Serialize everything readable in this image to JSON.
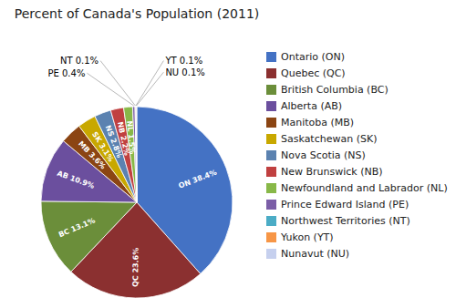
{
  "chart_data": {
    "type": "pie",
    "title": "Percent of Canada's Population (2011)",
    "categories": [
      "Ontario (ON)",
      "Quebec (QC)",
      "British Columbia (BC)",
      "Alberta (AB)",
      "Manitoba (MB)",
      "Saskatchewan (SK)",
      "Nova Scotia (NS)",
      "New Brunswick (NB)",
      "Newfoundland and Labrador (NL)",
      "Prince Edward Island (PE)",
      "Northwest Territories (NT)",
      "Yukon (YT)",
      "Nunavut (NU)"
    ],
    "values": [
      38.4,
      23.6,
      13.1,
      10.9,
      3.6,
      3.1,
      2.8,
      2.2,
      1.5,
      0.4,
      0.1,
      0.1,
      0.1
    ],
    "value_labels": [
      "ON 38.4%",
      "QC 23.6%",
      "BC 13.1%",
      "AB 10.9%",
      "MB 3.6%",
      "SK 3.1%",
      "NS 2.8%",
      "NB 2.2%",
      "NL 1.5%",
      "PE 0.4%",
      "NT 0.1%",
      "YT 0.1%",
      "NU 0.1%"
    ],
    "colors": [
      "#4472C4",
      "#8B3030",
      "#6B8E3A",
      "#6B4F9E",
      "#8B4513",
      "#C8A800",
      "#5B82B0",
      "#C04040",
      "#88B848",
      "#7B5EA7",
      "#4BACC6",
      "#F79646",
      "#C6D0EE"
    ],
    "data_labels": true,
    "legend": "right"
  }
}
